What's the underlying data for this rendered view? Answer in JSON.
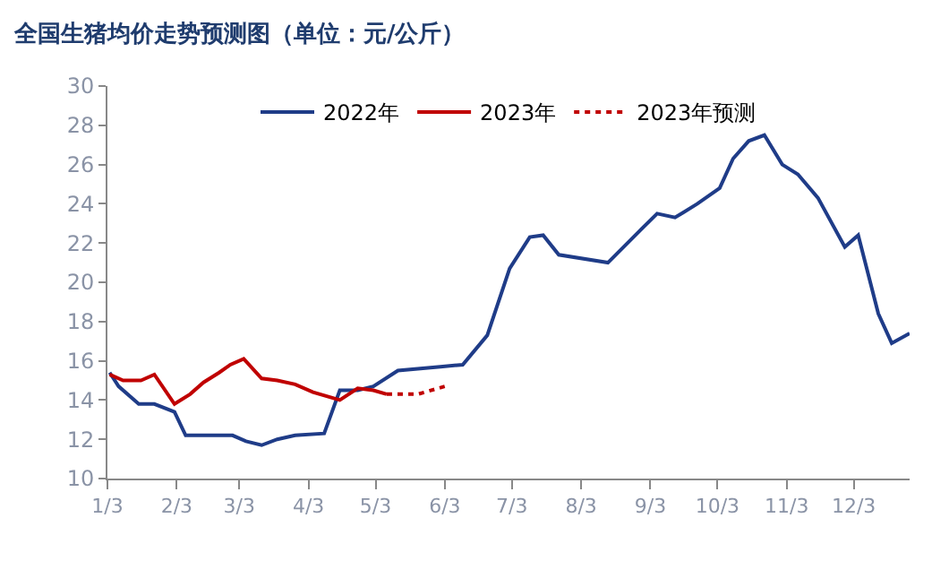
{
  "chart_data": {
    "type": "line",
    "title": "全国生猪均价走势预测图（单位：元/公斤）",
    "xlim": [
      "--01-03",
      "--12-28"
    ],
    "xticks": [
      {
        "value": "--01-03",
        "label": "1/3"
      },
      {
        "value": "--02-03",
        "label": "2/3"
      },
      {
        "value": "--03-03",
        "label": "3/3"
      },
      {
        "value": "--04-03",
        "label": "4/3"
      },
      {
        "value": "--05-03",
        "label": "5/3"
      },
      {
        "value": "--06-03",
        "label": "6/3"
      },
      {
        "value": "--07-03",
        "label": "7/3"
      },
      {
        "value": "--08-03",
        "label": "8/3"
      },
      {
        "value": "--09-03",
        "label": "9/3"
      },
      {
        "value": "--10-03",
        "label": "10/3"
      },
      {
        "value": "--11-03",
        "label": "11/3"
      },
      {
        "value": "--12-03",
        "label": "12/3"
      }
    ],
    "ylim": [
      10,
      30
    ],
    "yticks": [
      10,
      12,
      14,
      16,
      18,
      20,
      22,
      24,
      26,
      28,
      30
    ],
    "grid": false,
    "legend": "top",
    "marker": "none",
    "series": [
      {
        "name": "2022年",
        "color": "#1f3c88",
        "line_style": "solid",
        "x": [
          "--01-04",
          "--01-08",
          "--01-17",
          "--01-24",
          "--02-02",
          "--02-07",
          "--02-14",
          "--02-22",
          "--02-28",
          "--03-06",
          "--03-13",
          "--03-20",
          "--03-28",
          "--04-10",
          "--04-17",
          "--04-25",
          "--05-02",
          "--05-13",
          "--06-01",
          "--06-11",
          "--06-22",
          "--07-02",
          "--07-11",
          "--07-17",
          "--07-24",
          "--08-15",
          "--08-29",
          "--09-06",
          "--09-14",
          "--09-24",
          "--10-04",
          "--10-10",
          "--10-17",
          "--10-24",
          "--11-01",
          "--11-08",
          "--11-17",
          "--11-29",
          "--12-05",
          "--12-14",
          "--12-20",
          "--12-28"
        ],
        "values": [
          15.4,
          14.7,
          13.8,
          13.8,
          13.4,
          12.2,
          12.2,
          12.2,
          12.2,
          11.9,
          11.7,
          12.0,
          12.2,
          12.3,
          14.5,
          14.5,
          14.7,
          15.5,
          15.7,
          15.8,
          17.3,
          20.7,
          22.3,
          22.4,
          21.4,
          21.0,
          22.6,
          23.5,
          23.3,
          24.0,
          24.8,
          26.3,
          27.2,
          27.5,
          26.0,
          25.5,
          24.3,
          21.8,
          22.4,
          18.4,
          16.9,
          17.4
        ]
      },
      {
        "name": "2023年",
        "color": "#c00000",
        "line_style": "solid",
        "x": [
          "--01-04",
          "--01-10",
          "--01-18",
          "--01-24",
          "--02-02",
          "--02-09",
          "--02-15",
          "--02-22",
          "--02-27",
          "--03-05",
          "--03-13",
          "--03-20",
          "--03-28",
          "--04-05",
          "--04-17",
          "--04-25",
          "--05-02",
          "--05-08"
        ],
        "values": [
          15.3,
          15.0,
          15.0,
          15.3,
          13.8,
          14.3,
          14.9,
          15.4,
          15.8,
          16.1,
          15.1,
          15.0,
          14.8,
          14.4,
          14.0,
          14.6,
          14.5,
          14.3
        ]
      },
      {
        "name": "2023年预测",
        "color": "#c00000",
        "line_style": "dotted",
        "x": [
          "--05-08",
          "--05-22",
          "--06-03"
        ],
        "values": [
          14.3,
          14.3,
          14.7
        ]
      }
    ]
  }
}
